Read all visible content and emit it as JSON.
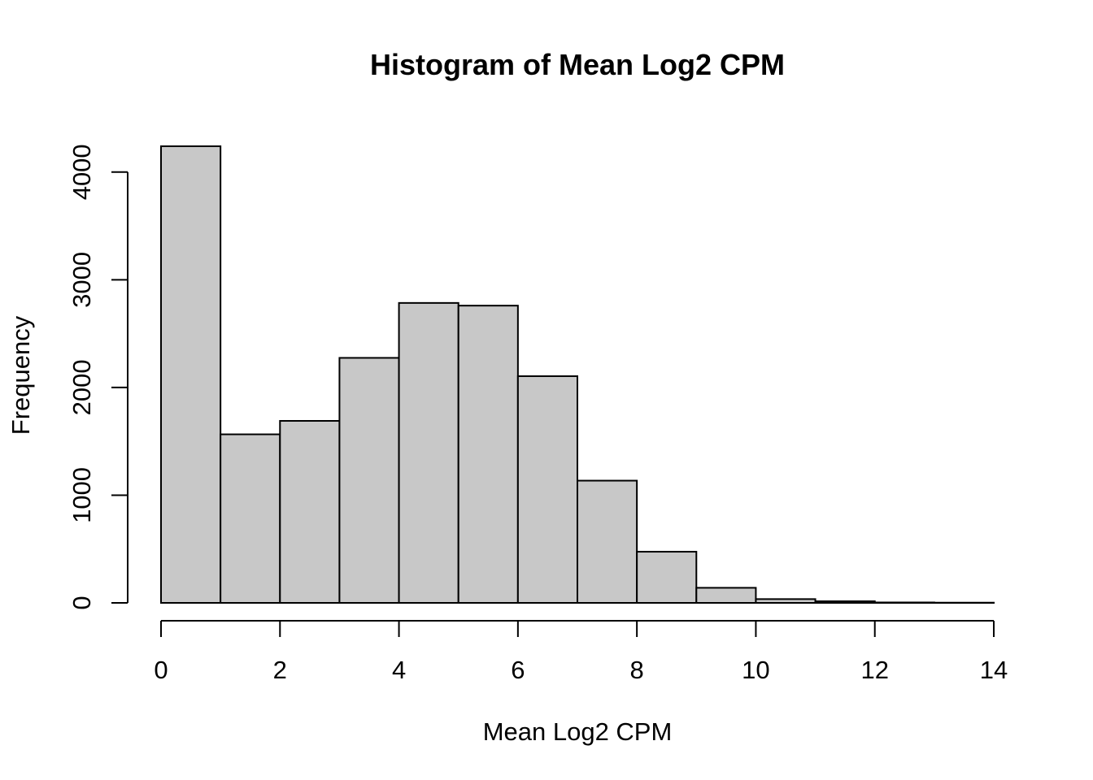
{
  "chart_data": {
    "type": "bar",
    "title": "Histogram of Mean Log2 CPM",
    "xlabel": "Mean Log2 CPM",
    "ylabel": "Frequency",
    "bin_edges": [
      0,
      1,
      2,
      3,
      4,
      5,
      6,
      7,
      8,
      9,
      10,
      11,
      12,
      13,
      14
    ],
    "values": [
      4240,
      1565,
      1690,
      2275,
      2785,
      2760,
      2105,
      1135,
      475,
      140,
      35,
      15,
      4,
      2
    ],
    "xlim": [
      0,
      14
    ],
    "ylim": [
      0,
      4240
    ],
    "x_ticks": [
      0,
      2,
      4,
      6,
      8,
      10,
      12,
      14
    ],
    "y_ticks": [
      0,
      1000,
      2000,
      3000,
      4000
    ],
    "x_tick_labels": [
      "0",
      "2",
      "4",
      "6",
      "8",
      "10",
      "12",
      "14"
    ],
    "y_tick_labels": [
      "0",
      "1000",
      "2000",
      "3000",
      "4000"
    ],
    "grid": false,
    "legend": "none",
    "bar_color": "#c8c8c8",
    "edge_color": "#000000"
  }
}
